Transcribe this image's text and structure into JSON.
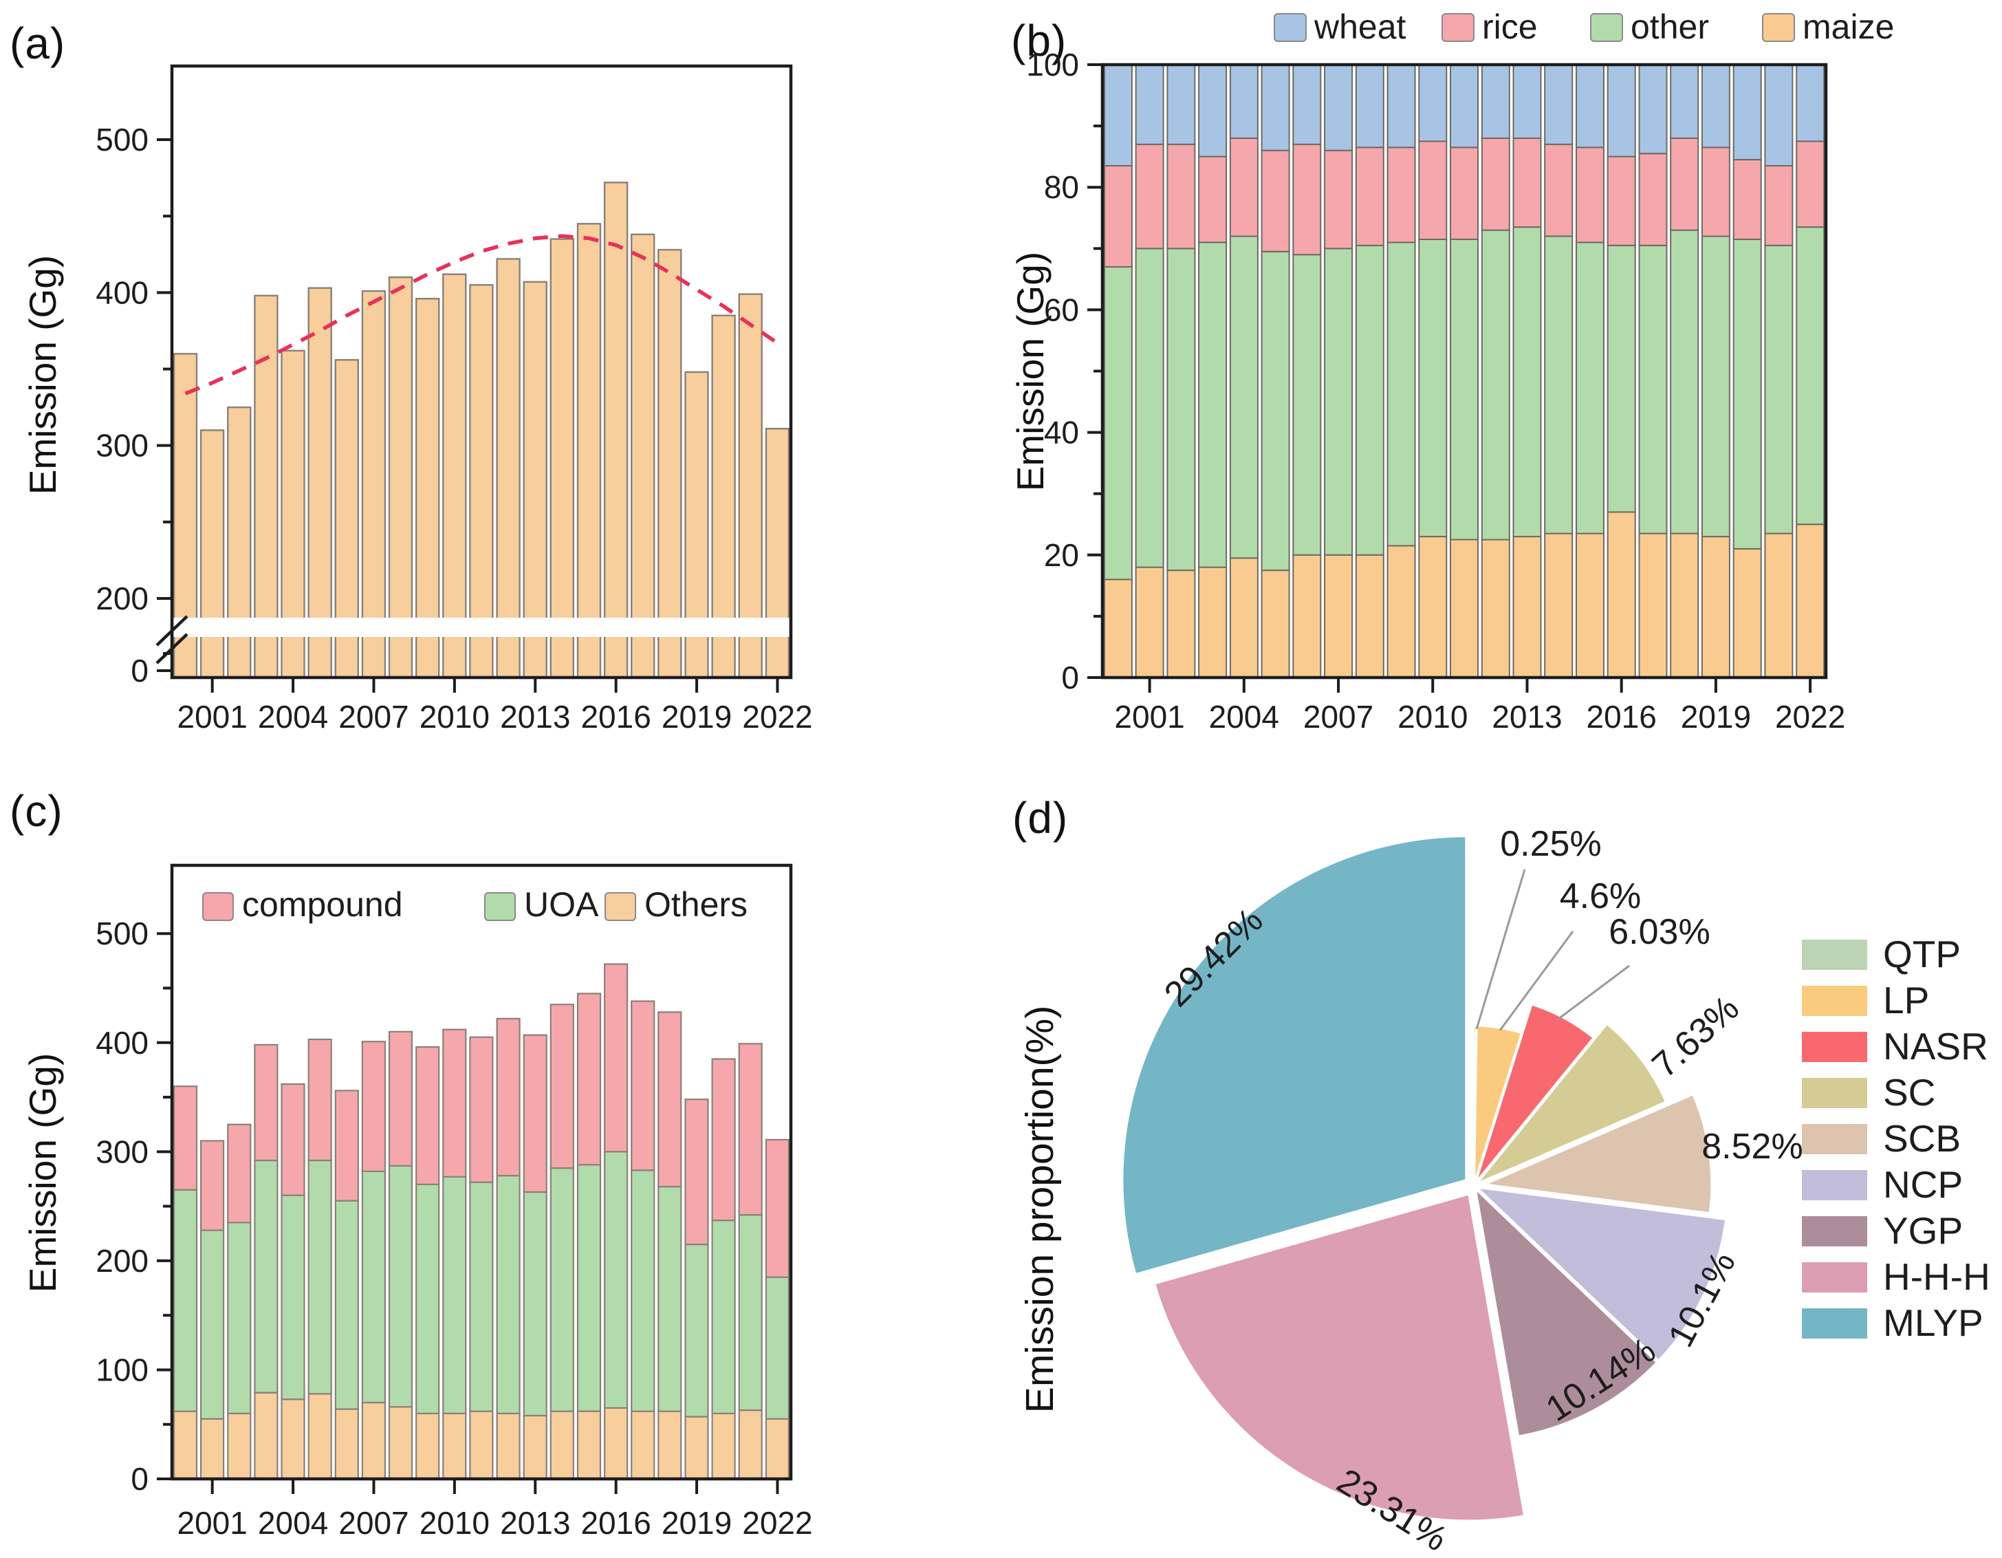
{
  "panels": {
    "a": {
      "label": "(a)",
      "ylabel": "Emission (Gg)"
    },
    "b": {
      "label": "(b)",
      "ylabel": "Emission (Gg)"
    },
    "c": {
      "label": "(c)",
      "ylabel": "Emission (Gg)"
    },
    "d": {
      "label": "(d)",
      "ylabel": "Emission proportion(%)"
    }
  },
  "axis": {
    "years": [
      2000,
      2001,
      2002,
      2003,
      2004,
      2005,
      2006,
      2007,
      2008,
      2009,
      2010,
      2011,
      2012,
      2013,
      2014,
      2015,
      2016,
      2017,
      2018,
      2019,
      2020,
      2021,
      2022
    ],
    "x_tick_labels": [
      "2001",
      "2004",
      "2007",
      "2010",
      "2013",
      "2016",
      "2019",
      "2022"
    ],
    "x_tick_years": [
      2001,
      2004,
      2007,
      2010,
      2013,
      2016,
      2019,
      2022
    ],
    "tick_color": "#1d1d1d"
  },
  "chart_data": [
    {
      "id": "a",
      "type": "bar",
      "ylabel": "Emission (Gg)",
      "ylim": [
        0,
        550
      ],
      "y_ticks": [
        0,
        200,
        300,
        400,
        500
      ],
      "y_minor_ticks": [
        250,
        350,
        450
      ],
      "axis_break_between": [
        0,
        200
      ],
      "bar_color": "#F8CE9D",
      "bar_edge_color": "#8A8178",
      "values": [
        360,
        310,
        325,
        398,
        362,
        403,
        356,
        401,
        410,
        396,
        412,
        405,
        422,
        407,
        435,
        445,
        472,
        438,
        428,
        348,
        385,
        399,
        311
      ],
      "trend": {
        "color": "#E8315B",
        "style": "dashed",
        "values": [
          334,
          341,
          349,
          357,
          366,
          375,
          385,
          394,
          403,
          412,
          420,
          427,
          432,
          435.5,
          437,
          435.5,
          431,
          423,
          413,
          402,
          391,
          379,
          367
        ]
      }
    },
    {
      "id": "b",
      "type": "stacked-bar-percent",
      "ylabel": "Emission (Gg)",
      "ylim": [
        0,
        100
      ],
      "y_ticks": [
        0,
        20,
        40,
        60,
        80,
        100
      ],
      "y_minor_ticks": [
        10,
        30,
        50,
        70,
        90
      ],
      "legend": [
        "wheat",
        "rice",
        "other",
        "maize"
      ],
      "colors": {
        "wheat": "#A8C4E4",
        "rice": "#F5A7AC",
        "other": "#B2DBAC",
        "maize": "#FACB90"
      },
      "stack_order": [
        "maize",
        "other",
        "rice",
        "wheat"
      ],
      "series": [
        {
          "name": "maize",
          "values": [
            16,
            18,
            17.5,
            18,
            19.5,
            17.5,
            20,
            20,
            20,
            21.5,
            23,
            22.5,
            22.5,
            23,
            23.5,
            23.5,
            27,
            23.5,
            23.5,
            23,
            21,
            23.5,
            25
          ]
        },
        {
          "name": "other",
          "values": [
            51,
            52,
            52.5,
            53,
            52.5,
            52,
            49,
            50,
            50.5,
            49.5,
            48.5,
            49,
            50.5,
            50.5,
            48.5,
            47.5,
            43.5,
            47,
            49.5,
            49,
            50.5,
            47,
            48.5
          ]
        },
        {
          "name": "rice",
          "values": [
            16.5,
            17,
            17,
            14,
            16,
            16.5,
            18,
            16,
            16,
            15.5,
            16,
            15,
            15,
            14.5,
            15,
            15.5,
            14.5,
            15,
            15,
            14.5,
            13,
            13,
            14
          ]
        },
        {
          "name": "wheat",
          "values": [
            16.5,
            13,
            13,
            15,
            12,
            14,
            13,
            14,
            13.5,
            13.5,
            12.5,
            13.5,
            12,
            12,
            13,
            13.5,
            15,
            14.5,
            12,
            13.5,
            15.5,
            16.5,
            12.5
          ]
        }
      ]
    },
    {
      "id": "c",
      "type": "stacked-bar",
      "ylabel": "Emission (Gg)",
      "ylim": [
        0,
        520
      ],
      "y_ticks": [
        0,
        100,
        200,
        300,
        400,
        500
      ],
      "y_minor_ticks": [
        50,
        150,
        250,
        350,
        450
      ],
      "legend": [
        "compound",
        "UOA",
        "Others"
      ],
      "colors": {
        "compound": "#F5A7AC",
        "UOA": "#B2DBAC",
        "Others": "#F8CE9D"
      },
      "stack_order": [
        "Others",
        "UOA",
        "compound"
      ],
      "series": [
        {
          "name": "Others",
          "values": [
            62,
            55,
            60,
            79,
            73,
            78,
            64,
            70,
            66,
            60,
            60,
            62,
            60,
            58,
            62,
            62,
            65,
            62,
            62,
            57,
            60,
            63,
            55
          ]
        },
        {
          "name": "UOA",
          "values": [
            203,
            173,
            175,
            213,
            187,
            214,
            191,
            212,
            221,
            210,
            217,
            210,
            218,
            205,
            223,
            226,
            235,
            221,
            206,
            158,
            177,
            179,
            130
          ]
        },
        {
          "name": "compound",
          "values": [
            95,
            82,
            90,
            106,
            102,
            111,
            101,
            119,
            123,
            126,
            135,
            133,
            144,
            144,
            150,
            157,
            172,
            155,
            160,
            133,
            148,
            157,
            126
          ]
        }
      ]
    },
    {
      "id": "d",
      "type": "pie",
      "ylabel": "Emission proportion(%)",
      "direction": "clockwise",
      "start_angle_deg": 0,
      "legend_position": "right",
      "leader_line_color": "#9a9a9a",
      "slices": [
        {
          "name": "QTP",
          "value": 0.25,
          "label": "0.25%",
          "color": "#BCD4B4"
        },
        {
          "name": "LP",
          "value": 4.6,
          "label": "4.6%",
          "color": "#FACB7F"
        },
        {
          "name": "NASR",
          "value": 6.03,
          "label": "6.03%",
          "color": "#F8696F"
        },
        {
          "name": "SC",
          "value": 7.63,
          "label": "7.63%",
          "color": "#D5CB94"
        },
        {
          "name": "SCB",
          "value": 8.52,
          "label": "8.52%",
          "color": "#DCC4AF"
        },
        {
          "name": "NCP",
          "value": 10.1,
          "label": "10.1%",
          "color": "#C2BDDB"
        },
        {
          "name": "YGP",
          "value": 10.14,
          "label": "10.14%",
          "color": "#AE8D9B"
        },
        {
          "name": "H-H-H",
          "value": 23.31,
          "label": "23.31%",
          "color": "#DC9EB2"
        },
        {
          "name": "MLYP",
          "value": 29.42,
          "label": "29.42%",
          "color": "#74B6C6"
        }
      ]
    }
  ]
}
